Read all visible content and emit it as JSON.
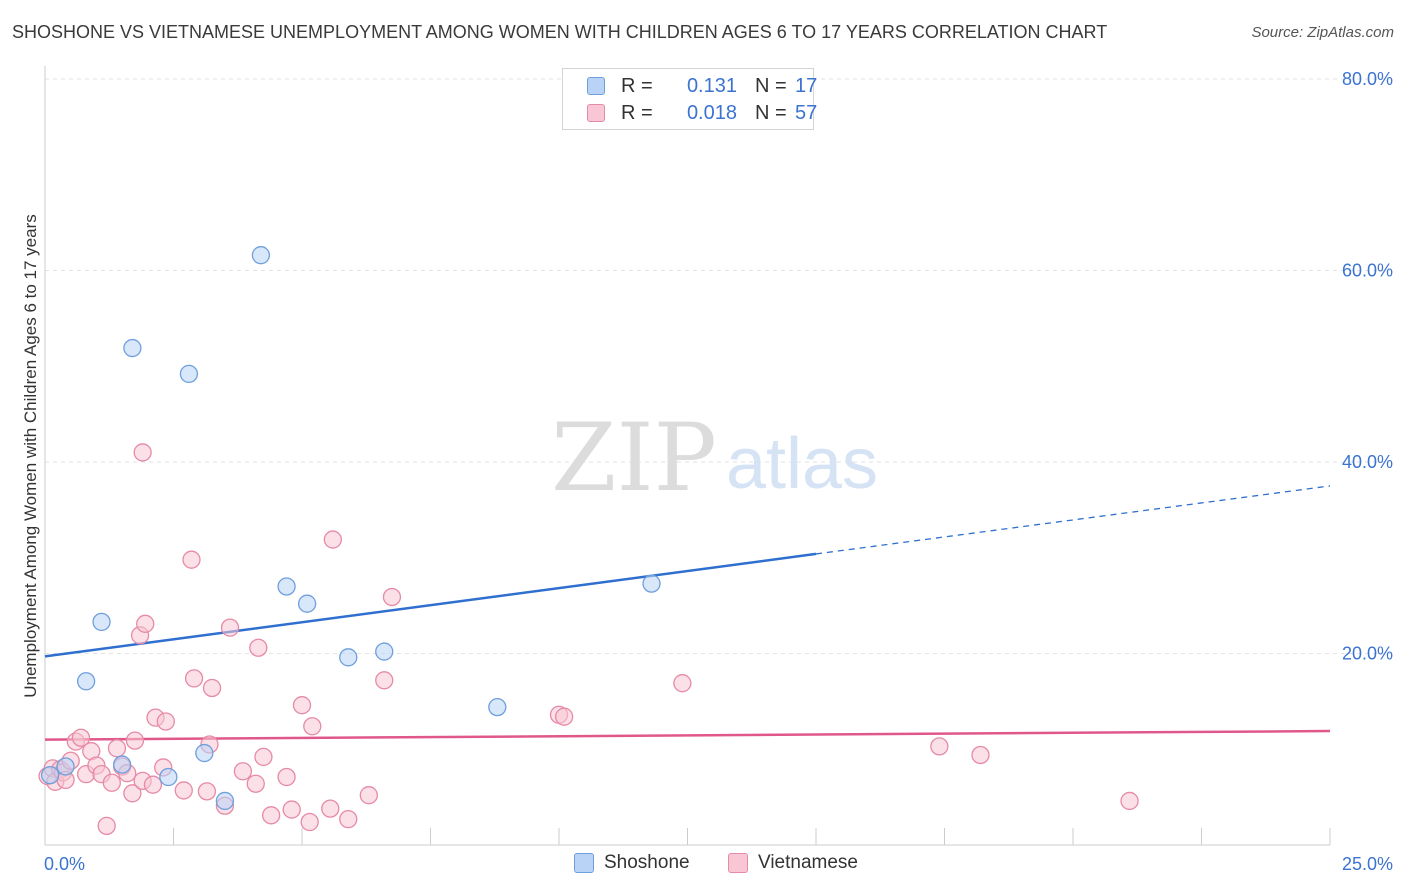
{
  "title": "SHOSHONE VS VIETNAMESE UNEMPLOYMENT AMONG WOMEN WITH CHILDREN AGES 6 TO 17 YEARS CORRELATION CHART",
  "source": "Source: ZipAtlas.com",
  "watermark": "ZIPatlas",
  "colors": {
    "shoshone_fill": "#b8d3f5",
    "shoshone_stroke": "#6f9fdc",
    "shoshone_line": "#2e6fd0",
    "vietnamese_fill": "#f8c6d4",
    "vietnamese_stroke": "#e68aa7",
    "vietnamese_line": "#e0588a",
    "tick_label": "#3b73d1"
  },
  "legend": {
    "rows": [
      {
        "label": "R =",
        "r": "0.131",
        "n_label": "N =",
        "n": "17"
      },
      {
        "label": "R =",
        "r": "0.018",
        "n_label": "N =",
        "n": "57"
      }
    ]
  },
  "bottom_legend": [
    "Shoshone",
    "Vietnamese"
  ],
  "chart_data": {
    "type": "scatter",
    "ylabel": "Unemployment Among Women with Children Ages 6 to 17 years",
    "xlabel": "",
    "xlim": [
      0,
      25
    ],
    "ylim": [
      0,
      80
    ],
    "x_tick_labels": [
      "0.0%",
      "25.0%"
    ],
    "y_tick_labels": [
      "20.0%",
      "40.0%",
      "60.0%",
      "80.0%"
    ],
    "y_ticks": [
      20,
      40,
      60,
      80
    ],
    "grid": true,
    "legend_position": "top-center",
    "series": [
      {
        "name": "Shoshone",
        "points": [
          [
            0.1,
            7.3
          ],
          [
            0.8,
            17.1
          ],
          [
            1.1,
            23.3
          ],
          [
            1.5,
            8.4
          ],
          [
            1.7,
            51.9
          ],
          [
            2.4,
            7.1
          ],
          [
            2.8,
            49.2
          ],
          [
            3.1,
            9.6
          ],
          [
            3.5,
            4.6
          ],
          [
            4.2,
            61.6
          ],
          [
            4.7,
            27.0
          ],
          [
            5.1,
            25.2
          ],
          [
            5.9,
            19.6
          ],
          [
            6.6,
            20.2
          ],
          [
            8.8,
            14.4
          ],
          [
            11.8,
            27.3
          ],
          [
            0.4,
            8.2
          ]
        ],
        "trend": {
          "x": [
            0,
            15,
            25
          ],
          "y": [
            19.7,
            30.4,
            37.5
          ],
          "solid_until": 15
        }
      },
      {
        "name": "Vietnamese",
        "points": [
          [
            0.05,
            7.2
          ],
          [
            0.15,
            8.0
          ],
          [
            0.2,
            6.6
          ],
          [
            0.3,
            7.9
          ],
          [
            0.35,
            7.6
          ],
          [
            0.4,
            6.8
          ],
          [
            0.5,
            8.8
          ],
          [
            0.6,
            10.8
          ],
          [
            0.7,
            11.2
          ],
          [
            0.8,
            7.4
          ],
          [
            0.9,
            9.8
          ],
          [
            1.0,
            8.3
          ],
          [
            1.1,
            7.4
          ],
          [
            1.2,
            2.0
          ],
          [
            1.3,
            6.5
          ],
          [
            1.4,
            10.1
          ],
          [
            1.5,
            8.2
          ],
          [
            1.6,
            7.5
          ],
          [
            1.7,
            5.4
          ],
          [
            1.75,
            10.9
          ],
          [
            1.85,
            21.9
          ],
          [
            1.9,
            6.7
          ],
          [
            1.95,
            23.1
          ],
          [
            2.1,
            6.3
          ],
          [
            2.15,
            13.3
          ],
          [
            2.3,
            8.1
          ],
          [
            2.35,
            12.9
          ],
          [
            2.7,
            5.7
          ],
          [
            2.85,
            29.8
          ],
          [
            2.9,
            17.4
          ],
          [
            3.15,
            5.6
          ],
          [
            3.2,
            10.5
          ],
          [
            3.25,
            16.4
          ],
          [
            3.5,
            4.1
          ],
          [
            3.6,
            22.7
          ],
          [
            3.85,
            7.7
          ],
          [
            4.1,
            6.4
          ],
          [
            4.15,
            20.6
          ],
          [
            4.25,
            9.2
          ],
          [
            4.4,
            3.1
          ],
          [
            4.7,
            7.1
          ],
          [
            4.8,
            3.7
          ],
          [
            5.0,
            14.6
          ],
          [
            5.15,
            2.4
          ],
          [
            5.2,
            12.4
          ],
          [
            5.55,
            3.8
          ],
          [
            5.6,
            31.9
          ],
          [
            5.9,
            2.7
          ],
          [
            6.3,
            5.2
          ],
          [
            6.6,
            17.2
          ],
          [
            6.75,
            25.9
          ],
          [
            10.0,
            13.6
          ],
          [
            10.1,
            13.4
          ],
          [
            12.4,
            16.9
          ],
          [
            17.4,
            10.3
          ],
          [
            18.2,
            9.4
          ],
          [
            21.1,
            4.6
          ]
        ],
        "points_extra": [
          [
            1.9,
            41.0
          ]
        ],
        "trend": {
          "x": [
            0,
            25
          ],
          "y": [
            11.0,
            11.9
          ]
        }
      }
    ]
  }
}
